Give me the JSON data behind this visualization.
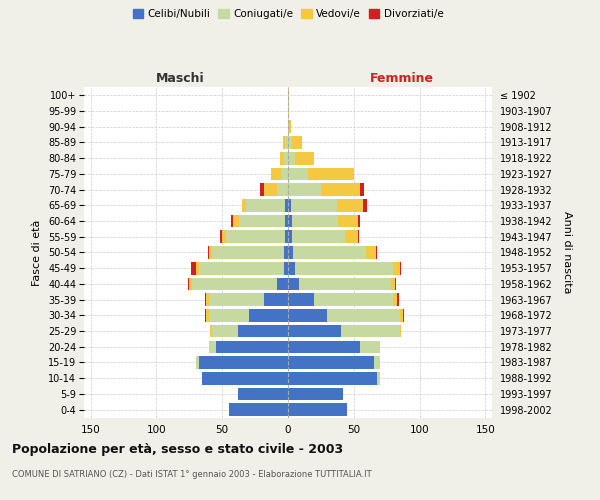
{
  "age_groups": [
    "0-4",
    "5-9",
    "10-14",
    "15-19",
    "20-24",
    "25-29",
    "30-34",
    "35-39",
    "40-44",
    "45-49",
    "50-54",
    "55-59",
    "60-64",
    "65-69",
    "70-74",
    "75-79",
    "80-84",
    "85-89",
    "90-94",
    "95-99",
    "100+"
  ],
  "birth_years": [
    "1998-2002",
    "1993-1997",
    "1988-1992",
    "1983-1987",
    "1978-1982",
    "1973-1977",
    "1968-1972",
    "1963-1967",
    "1958-1962",
    "1953-1957",
    "1948-1952",
    "1943-1947",
    "1938-1942",
    "1933-1937",
    "1928-1932",
    "1923-1927",
    "1918-1922",
    "1913-1917",
    "1908-1912",
    "1903-1907",
    "≤ 1902"
  ],
  "males_celibe": [
    45,
    38,
    65,
    68,
    55,
    38,
    30,
    18,
    8,
    3,
    3,
    2,
    2,
    2,
    0,
    0,
    0,
    0,
    0,
    0,
    0
  ],
  "males_coniugato": [
    0,
    0,
    0,
    2,
    5,
    20,
    30,
    42,
    65,
    65,
    55,
    45,
    35,
    30,
    8,
    5,
    3,
    2,
    0,
    0,
    0
  ],
  "males_vedovo": [
    0,
    0,
    0,
    0,
    0,
    1,
    2,
    2,
    2,
    2,
    2,
    3,
    5,
    3,
    10,
    8,
    3,
    2,
    0,
    0,
    0
  ],
  "males_divorziato": [
    0,
    0,
    0,
    0,
    0,
    0,
    1,
    1,
    1,
    4,
    1,
    2,
    1,
    0,
    3,
    0,
    0,
    0,
    0,
    0,
    0
  ],
  "females_nubile": [
    45,
    42,
    68,
    65,
    55,
    40,
    30,
    20,
    8,
    5,
    4,
    3,
    3,
    2,
    0,
    0,
    0,
    0,
    0,
    0,
    0
  ],
  "females_coniugata": [
    0,
    0,
    2,
    5,
    15,
    45,
    55,
    60,
    70,
    75,
    55,
    40,
    35,
    35,
    25,
    15,
    5,
    3,
    0,
    0,
    0
  ],
  "females_vedova": [
    0,
    0,
    0,
    0,
    0,
    1,
    2,
    3,
    3,
    5,
    8,
    10,
    15,
    20,
    30,
    35,
    15,
    8,
    2,
    1,
    1
  ],
  "females_divorziata": [
    0,
    0,
    0,
    0,
    0,
    0,
    1,
    1,
    1,
    1,
    1,
    1,
    2,
    3,
    3,
    0,
    0,
    0,
    0,
    0,
    0
  ],
  "colors": {
    "celibe_nubile": "#4472C4",
    "coniugato_a": "#C5D9A0",
    "vedovo_a": "#F5C842",
    "divorziato_a": "#CC2222"
  },
  "xlim": 155,
  "title": "Popolazione per età, sesso e stato civile - 2003",
  "subtitle": "COMUNE DI SATRIANO (CZ) - Dati ISTAT 1° gennaio 2003 - Elaborazione TUTTITALIA.IT",
  "ylabel_left": "Fasce di età",
  "ylabel_right": "Anni di nascita",
  "xlabel_left": "Maschi",
  "xlabel_right": "Femmine",
  "bg_color": "#f0f0e8",
  "plot_bg": "#ffffff",
  "legend_labels": [
    "Celibi/Nubili",
    "Coniugati/e",
    "Vedovi/e",
    "Divorziati/e"
  ]
}
